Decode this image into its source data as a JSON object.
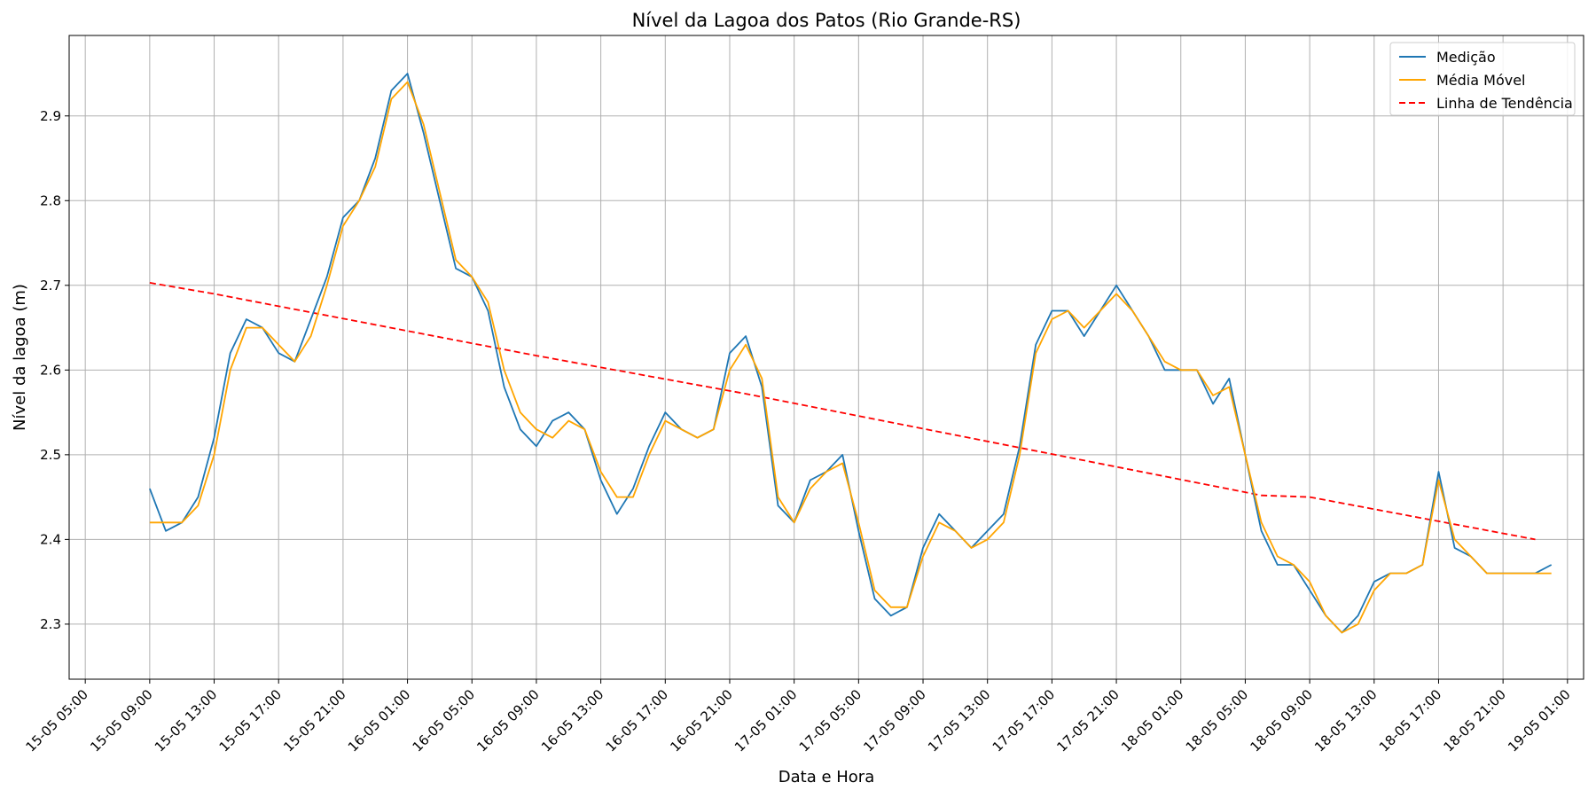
{
  "chart_data": {
    "type": "line",
    "title": "Nível da Lagoa dos Patos (Rio Grande-RS)",
    "xlabel": "Data e Hora",
    "ylabel": "Nível da lagoa (m)",
    "xlim": [
      "15-05 04:00",
      "19-05 02:00"
    ],
    "ylim": [
      2.235,
      2.995
    ],
    "grid": true,
    "legend_position": "top-right",
    "x_ticks": [
      "15-05 05:00",
      "15-05 09:00",
      "15-05 13:00",
      "15-05 17:00",
      "15-05 21:00",
      "16-05 01:00",
      "16-05 05:00",
      "16-05 09:00",
      "16-05 13:00",
      "16-05 17:00",
      "16-05 21:00",
      "17-05 01:00",
      "17-05 05:00",
      "17-05 09:00",
      "17-05 13:00",
      "17-05 17:00",
      "17-05 21:00",
      "18-05 01:00",
      "18-05 05:00",
      "18-05 09:00",
      "18-05 13:00",
      "18-05 17:00",
      "18-05 21:00",
      "19-05 01:00"
    ],
    "y_ticks": [
      2.3,
      2.4,
      2.5,
      2.6,
      2.7,
      2.8,
      2.9
    ],
    "series": [
      {
        "name": "Medição",
        "color": "#1f77b4",
        "style": "solid",
        "x": [
          "15-05 09:00",
          "15-05 10:00",
          "15-05 11:00",
          "15-05 12:00",
          "15-05 13:00",
          "15-05 14:00",
          "15-05 15:00",
          "15-05 16:00",
          "15-05 17:00",
          "15-05 18:00",
          "15-05 19:00",
          "15-05 20:00",
          "15-05 21:00",
          "15-05 22:00",
          "15-05 23:00",
          "16-05 00:00",
          "16-05 01:00",
          "16-05 02:00",
          "16-05 03:00",
          "16-05 04:00",
          "16-05 05:00",
          "16-05 06:00",
          "16-05 07:00",
          "16-05 08:00",
          "16-05 09:00",
          "16-05 10:00",
          "16-05 11:00",
          "16-05 12:00",
          "16-05 13:00",
          "16-05 14:00",
          "16-05 15:00",
          "16-05 16:00",
          "16-05 17:00",
          "16-05 18:00",
          "16-05 19:00",
          "16-05 20:00",
          "16-05 21:00",
          "16-05 22:00",
          "16-05 23:00",
          "17-05 00:00",
          "17-05 01:00",
          "17-05 02:00",
          "17-05 03:00",
          "17-05 04:00",
          "17-05 05:00",
          "17-05 06:00",
          "17-05 07:00",
          "17-05 08:00",
          "17-05 09:00",
          "17-05 10:00",
          "17-05 11:00",
          "17-05 12:00",
          "17-05 13:00",
          "17-05 14:00",
          "17-05 15:00",
          "17-05 16:00",
          "17-05 17:00",
          "17-05 18:00",
          "17-05 19:00",
          "17-05 20:00",
          "17-05 21:00",
          "17-05 22:00",
          "17-05 23:00",
          "18-05 00:00",
          "18-05 01:00",
          "18-05 02:00",
          "18-05 03:00",
          "18-05 04:00",
          "18-05 05:00",
          "18-05 06:00",
          "18-05 07:00",
          "18-05 08:00",
          "18-05 09:00",
          "18-05 10:00",
          "18-05 11:00",
          "18-05 12:00",
          "18-05 13:00",
          "18-05 14:00",
          "18-05 15:00",
          "18-05 16:00",
          "18-05 17:00",
          "18-05 18:00",
          "18-05 19:00",
          "18-05 20:00",
          "18-05 21:00",
          "18-05 22:00",
          "18-05 23:00",
          "19-05 00:00"
        ],
        "values": [
          2.46,
          2.41,
          2.42,
          2.45,
          2.52,
          2.62,
          2.66,
          2.65,
          2.62,
          2.61,
          2.66,
          2.71,
          2.78,
          2.8,
          2.85,
          2.93,
          2.95,
          2.88,
          2.8,
          2.72,
          2.71,
          2.67,
          2.58,
          2.53,
          2.51,
          2.54,
          2.55,
          2.53,
          2.47,
          2.43,
          2.46,
          2.51,
          2.55,
          2.53,
          2.52,
          2.53,
          2.62,
          2.64,
          2.58,
          2.44,
          2.42,
          2.47,
          2.48,
          2.5,
          2.41,
          2.33,
          2.31,
          2.32,
          2.39,
          2.43,
          2.41,
          2.39,
          2.41,
          2.43,
          2.51,
          2.63,
          2.67,
          2.67,
          2.64,
          2.67,
          2.7,
          2.67,
          2.64,
          2.6,
          2.6,
          2.6,
          2.56,
          2.59,
          2.5,
          2.41,
          2.37,
          2.37,
          2.34,
          2.31,
          2.29,
          2.31,
          2.35,
          2.36,
          2.36,
          2.37,
          2.48,
          2.39,
          2.38,
          2.36,
          2.36,
          2.36,
          2.36,
          2.37
        ]
      },
      {
        "name": "Média Móvel",
        "color": "#ffa500",
        "style": "solid",
        "x": [
          "15-05 09:00",
          "15-05 10:00",
          "15-05 11:00",
          "15-05 12:00",
          "15-05 13:00",
          "15-05 14:00",
          "15-05 15:00",
          "15-05 16:00",
          "15-05 17:00",
          "15-05 18:00",
          "15-05 19:00",
          "15-05 20:00",
          "15-05 21:00",
          "15-05 22:00",
          "15-05 23:00",
          "16-05 00:00",
          "16-05 01:00",
          "16-05 02:00",
          "16-05 03:00",
          "16-05 04:00",
          "16-05 05:00",
          "16-05 06:00",
          "16-05 07:00",
          "16-05 08:00",
          "16-05 09:00",
          "16-05 10:00",
          "16-05 11:00",
          "16-05 12:00",
          "16-05 13:00",
          "16-05 14:00",
          "16-05 15:00",
          "16-05 16:00",
          "16-05 17:00",
          "16-05 18:00",
          "16-05 19:00",
          "16-05 20:00",
          "16-05 21:00",
          "16-05 22:00",
          "16-05 23:00",
          "17-05 00:00",
          "17-05 01:00",
          "17-05 02:00",
          "17-05 03:00",
          "17-05 04:00",
          "17-05 05:00",
          "17-05 06:00",
          "17-05 07:00",
          "17-05 08:00",
          "17-05 09:00",
          "17-05 10:00",
          "17-05 11:00",
          "17-05 12:00",
          "17-05 13:00",
          "17-05 14:00",
          "17-05 15:00",
          "17-05 16:00",
          "17-05 17:00",
          "17-05 18:00",
          "17-05 19:00",
          "17-05 20:00",
          "17-05 21:00",
          "17-05 22:00",
          "17-05 23:00",
          "18-05 00:00",
          "18-05 01:00",
          "18-05 02:00",
          "18-05 03:00",
          "18-05 04:00",
          "18-05 05:00",
          "18-05 06:00",
          "18-05 07:00",
          "18-05 08:00",
          "18-05 09:00",
          "18-05 10:00",
          "18-05 11:00",
          "18-05 12:00",
          "18-05 13:00",
          "18-05 14:00",
          "18-05 15:00",
          "18-05 16:00",
          "18-05 17:00",
          "18-05 18:00",
          "18-05 19:00",
          "18-05 20:00",
          "18-05 21:00",
          "18-05 22:00",
          "18-05 23:00",
          "19-05 00:00"
        ],
        "values": [
          2.42,
          2.42,
          2.42,
          2.44,
          2.5,
          2.6,
          2.65,
          2.65,
          2.63,
          2.61,
          2.64,
          2.7,
          2.77,
          2.8,
          2.84,
          2.92,
          2.94,
          2.89,
          2.81,
          2.73,
          2.71,
          2.68,
          2.6,
          2.55,
          2.53,
          2.52,
          2.54,
          2.53,
          2.48,
          2.45,
          2.45,
          2.5,
          2.54,
          2.53,
          2.52,
          2.53,
          2.6,
          2.63,
          2.59,
          2.45,
          2.42,
          2.46,
          2.48,
          2.49,
          2.42,
          2.34,
          2.32,
          2.32,
          2.38,
          2.42,
          2.41,
          2.39,
          2.4,
          2.42,
          2.5,
          2.62,
          2.66,
          2.67,
          2.65,
          2.67,
          2.69,
          2.67,
          2.64,
          2.61,
          2.6,
          2.6,
          2.57,
          2.58,
          2.5,
          2.42,
          2.38,
          2.37,
          2.35,
          2.31,
          2.29,
          2.3,
          2.34,
          2.36,
          2.36,
          2.37,
          2.47,
          2.4,
          2.38,
          2.36,
          2.36,
          2.36,
          2.36,
          2.36
        ]
      },
      {
        "name": "Linha de Tendência",
        "color": "#ff0000",
        "style": "dashed",
        "x": [
          "15-05 09:00",
          "15-05 13:00",
          "16-05 09:00",
          "16-05 22:00",
          "18-05 06:00",
          "18-05 09:00",
          "18-05 23:00"
        ],
        "values": [
          2.703,
          2.69,
          2.617,
          2.572,
          2.452,
          2.45,
          2.4
        ]
      }
    ]
  }
}
